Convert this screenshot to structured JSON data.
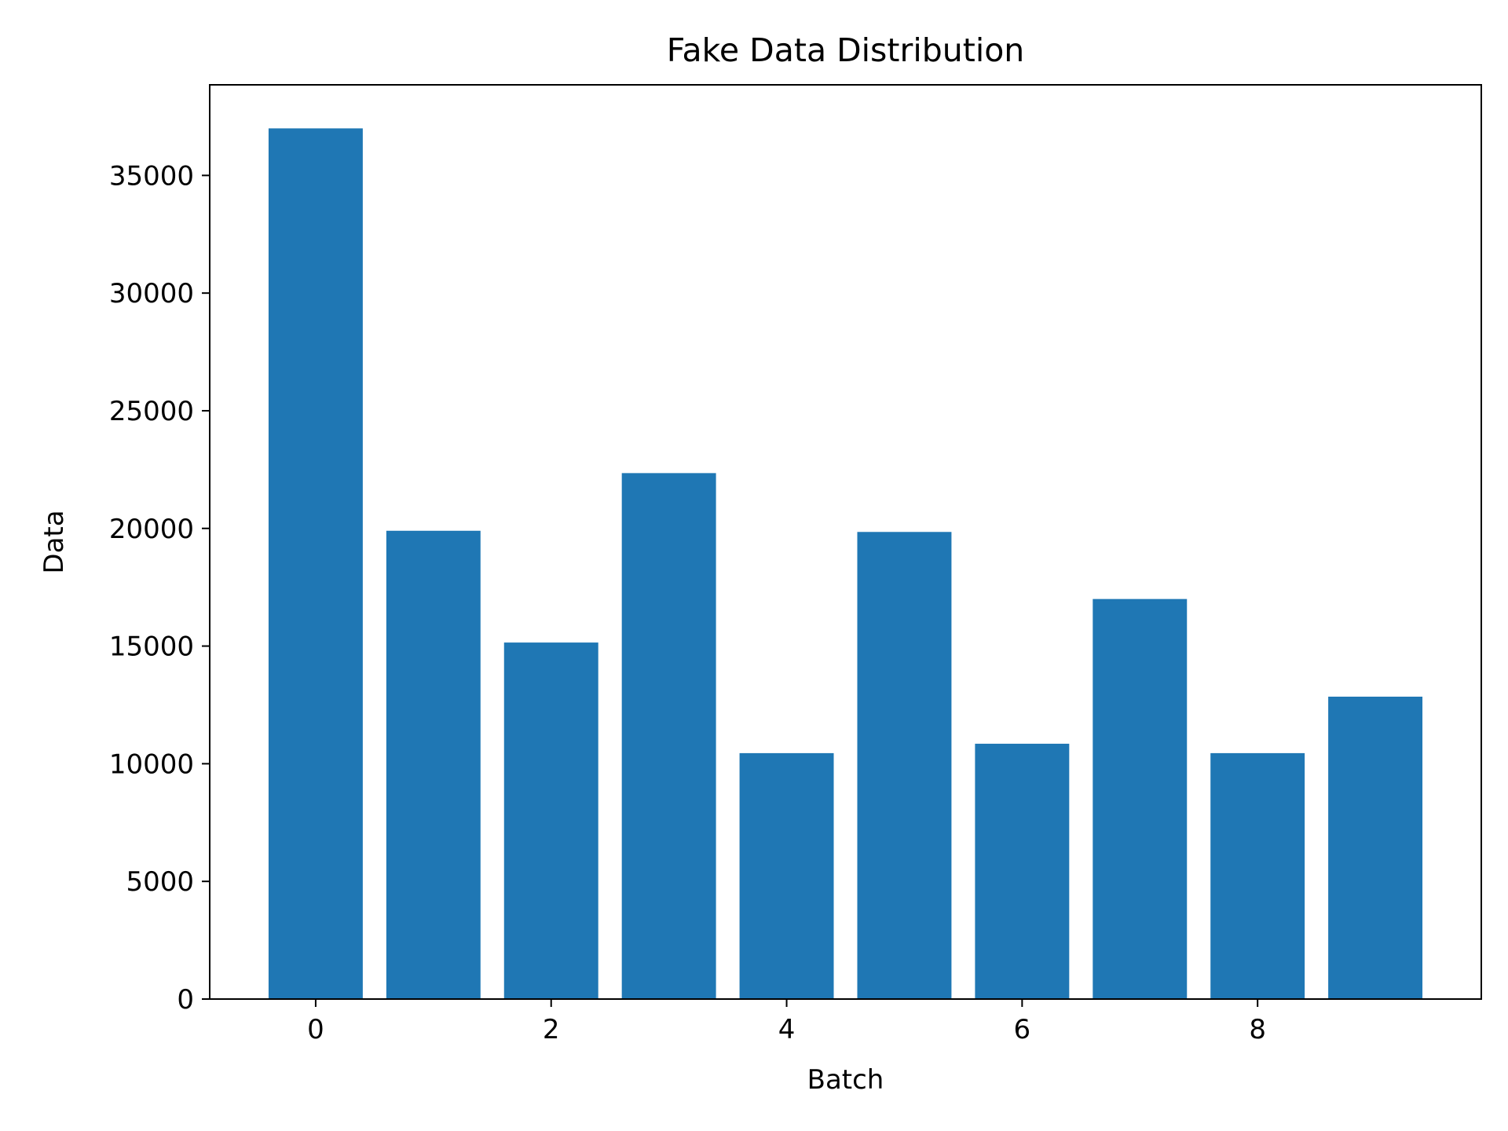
{
  "chart_data": {
    "type": "bar",
    "title": "Fake Data Distribution",
    "xlabel": "Batch",
    "ylabel": "Data",
    "categories": [
      0,
      1,
      2,
      3,
      4,
      5,
      6,
      7,
      8,
      9
    ],
    "values": [
      37000,
      19900,
      15150,
      22350,
      10450,
      19850,
      10850,
      17000,
      10450,
      12850
    ],
    "xlim": [
      -0.9,
      9.9
    ],
    "ylim": [
      0,
      38850
    ],
    "xticks": [
      0,
      2,
      4,
      6,
      8
    ],
    "xtick_labels": [
      "0",
      "2",
      "4",
      "6",
      "8"
    ],
    "yticks": [
      0,
      5000,
      10000,
      15000,
      20000,
      25000,
      30000,
      35000
    ],
    "ytick_labels": [
      "0",
      "5000",
      "10000",
      "15000",
      "20000",
      "25000",
      "30000",
      "35000"
    ],
    "bar_color": "#1f77b4",
    "grid": false,
    "legend": "none"
  }
}
